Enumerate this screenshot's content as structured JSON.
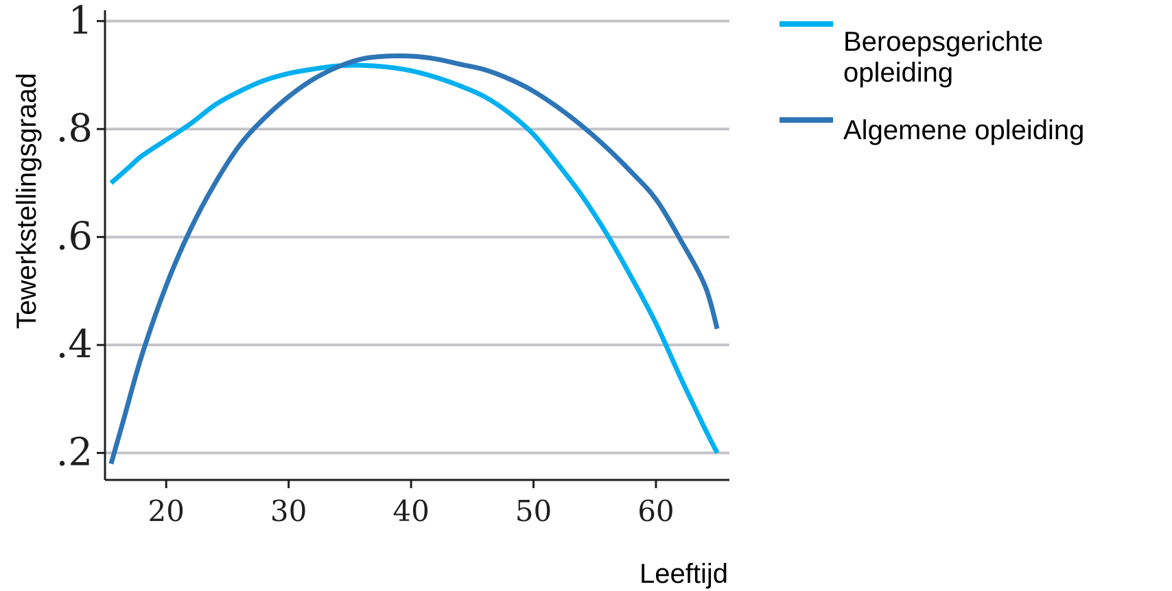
{
  "chart_data": {
    "type": "line",
    "title": "",
    "xlabel": "Leeftijd",
    "ylabel": "Tewerkstellingsgraad",
    "xlim": [
      15,
      66
    ],
    "ylim": [
      0.15,
      1.02
    ],
    "grid": true,
    "x_ticks": [
      {
        "value": 20,
        "label": "20"
      },
      {
        "value": 30,
        "label": "30"
      },
      {
        "value": 40,
        "label": "40"
      },
      {
        "value": 50,
        "label": "50"
      },
      {
        "value": 60,
        "label": "60"
      }
    ],
    "y_ticks": [
      {
        "value": 0.2,
        "label": ".2"
      },
      {
        "value": 0.4,
        "label": ".4"
      },
      {
        "value": 0.6,
        "label": ".6"
      },
      {
        "value": 0.8,
        "label": ".8"
      },
      {
        "value": 1.0,
        "label": "1"
      }
    ],
    "legend_position": "top-right, outside plot",
    "series": [
      {
        "name": "Beroepsgerichte opleiding",
        "legend_lines": [
          "Beroepsgerichte",
          "opleiding"
        ],
        "color": "#00b0f0",
        "x": [
          15.5,
          17,
          18,
          20,
          22,
          24,
          26,
          28,
          30,
          32,
          34,
          36,
          38,
          40,
          42,
          44,
          46,
          48,
          50,
          52,
          54,
          56,
          58,
          60,
          62,
          64,
          65
        ],
        "y": [
          0.7,
          0.73,
          0.75,
          0.78,
          0.81,
          0.845,
          0.87,
          0.89,
          0.903,
          0.911,
          0.917,
          0.918,
          0.915,
          0.908,
          0.896,
          0.88,
          0.86,
          0.83,
          0.79,
          0.735,
          0.675,
          0.605,
          0.525,
          0.44,
          0.34,
          0.245,
          0.2
        ]
      },
      {
        "name": "Algemene opleiding",
        "legend_lines": [
          "Algemene opleiding"
        ],
        "color": "#2e75b6",
        "x": [
          15.5,
          16.5,
          18,
          20,
          22,
          24,
          26,
          28,
          30,
          32,
          34,
          36,
          38,
          40,
          42,
          44,
          46,
          48,
          50,
          52,
          54,
          56,
          58,
          60,
          62,
          64,
          65
        ],
        "y": [
          0.18,
          0.26,
          0.38,
          0.51,
          0.615,
          0.7,
          0.77,
          0.82,
          0.86,
          0.892,
          0.915,
          0.93,
          0.935,
          0.935,
          0.93,
          0.92,
          0.91,
          0.893,
          0.87,
          0.84,
          0.805,
          0.765,
          0.72,
          0.67,
          0.595,
          0.51,
          0.43
        ]
      }
    ]
  }
}
